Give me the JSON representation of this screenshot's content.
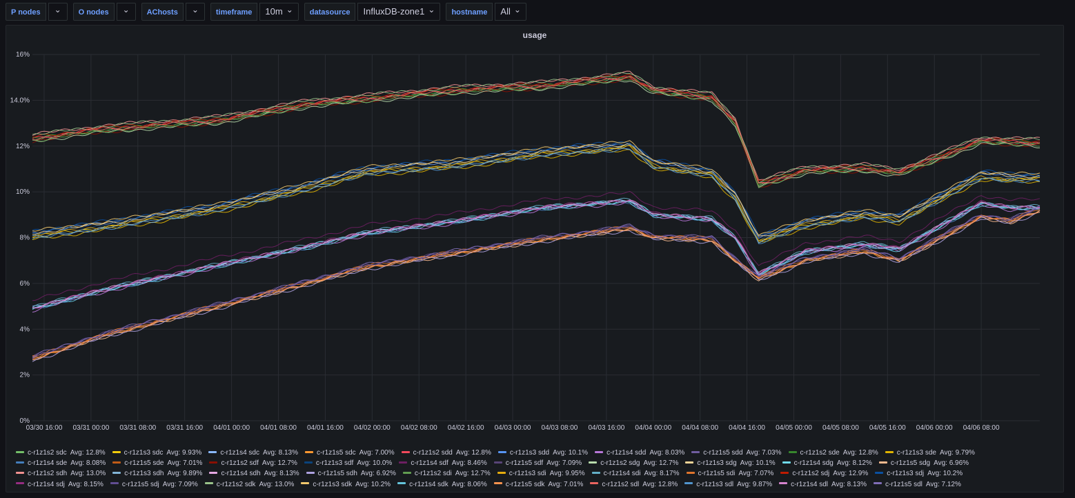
{
  "toolbar": {
    "vars": [
      {
        "label": "P nodes",
        "value": ""
      },
      {
        "label": "O nodes",
        "value": ""
      },
      {
        "label": "AChosts",
        "value": ""
      },
      {
        "label": "timeframe",
        "value": "10m"
      },
      {
        "label": "datasource",
        "value": "InfluxDB-zone1"
      },
      {
        "label": "hostname",
        "value": "All"
      }
    ],
    "chevron_icon": "chevron-down-icon"
  },
  "panel": {
    "title": "usage"
  },
  "chart_data": {
    "type": "line",
    "title": "usage",
    "y_ticks": [
      "0%",
      "2%",
      "4%",
      "6%",
      "8%",
      "10%",
      "12%",
      "14.0%",
      "16%"
    ],
    "ylim": [
      0,
      16
    ],
    "x_ticks": [
      "03/30 16:00",
      "03/31 00:00",
      "03/31 08:00",
      "03/31 16:00",
      "04/01 00:00",
      "04/01 08:00",
      "04/01 16:00",
      "04/02 00:00",
      "04/02 08:00",
      "04/02 16:00",
      "04/03 00:00",
      "04/03 08:00",
      "04/03 16:00",
      "04/04 00:00",
      "04/04 08:00",
      "04/04 16:00",
      "04/05 00:00",
      "04/05 08:00",
      "04/05 16:00",
      "04/06 00:00",
      "04/06 08:00"
    ],
    "x_range_hours": [
      -2,
      170
    ],
    "grid": true,
    "legend_position": "bottom",
    "group_shapes": {
      "g12": [
        [
          -2,
          12.3
        ],
        [
          10,
          12.7
        ],
        [
          30,
          13.1
        ],
        [
          45,
          13.8
        ],
        [
          70,
          14.4
        ],
        [
          85,
          14.6
        ],
        [
          100,
          15.0
        ],
        [
          104,
          14.4
        ],
        [
          114,
          14.1
        ],
        [
          118,
          13.0
        ],
        [
          122,
          10.3
        ],
        [
          130,
          10.9
        ],
        [
          140,
          11.0
        ],
        [
          146,
          10.8
        ],
        [
          160,
          12.2
        ],
        [
          170,
          12.1
        ]
      ],
      "g10": [
        [
          -2,
          8.1
        ],
        [
          10,
          8.5
        ],
        [
          30,
          9.3
        ],
        [
          45,
          10.2
        ],
        [
          55,
          10.9
        ],
        [
          70,
          11.2
        ],
        [
          85,
          11.7
        ],
        [
          100,
          12.0
        ],
        [
          104,
          11.2
        ],
        [
          114,
          10.8
        ],
        [
          118,
          9.8
        ],
        [
          122,
          7.9
        ],
        [
          130,
          8.6
        ],
        [
          140,
          9.0
        ],
        [
          146,
          8.8
        ],
        [
          160,
          10.7
        ],
        [
          165,
          10.6
        ],
        [
          170,
          10.6
        ]
      ],
      "g8": [
        [
          -2,
          4.9
        ],
        [
          10,
          5.7
        ],
        [
          30,
          6.8
        ],
        [
          45,
          7.6
        ],
        [
          55,
          8.2
        ],
        [
          70,
          8.7
        ],
        [
          85,
          9.3
        ],
        [
          100,
          9.6
        ],
        [
          104,
          9.0
        ],
        [
          114,
          8.8
        ],
        [
          118,
          8.0
        ],
        [
          122,
          6.4
        ],
        [
          130,
          7.4
        ],
        [
          140,
          7.7
        ],
        [
          146,
          7.5
        ],
        [
          160,
          9.5
        ],
        [
          165,
          9.3
        ],
        [
          170,
          9.3
        ]
      ],
      "g7": [
        [
          -2,
          2.7
        ],
        [
          10,
          3.7
        ],
        [
          30,
          5.0
        ],
        [
          45,
          6.0
        ],
        [
          55,
          6.7
        ],
        [
          70,
          7.3
        ],
        [
          85,
          7.9
        ],
        [
          100,
          8.4
        ],
        [
          104,
          8.0
        ],
        [
          114,
          7.9
        ],
        [
          118,
          7.0
        ],
        [
          122,
          6.2
        ],
        [
          130,
          7.0
        ],
        [
          140,
          7.4
        ],
        [
          146,
          7.0
        ],
        [
          160,
          8.9
        ],
        [
          165,
          8.7
        ],
        [
          170,
          9.2
        ]
      ]
    },
    "series": [
      {
        "name": "c-r1z1s2 sdc",
        "avg": "Avg: 12.8%",
        "color": "#73bf69",
        "group": "g12",
        "offset": 0.0
      },
      {
        "name": "c-r1z1s3 sdc",
        "avg": "Avg: 9.93%",
        "color": "#f2cc0c",
        "group": "g10",
        "offset": -0.05
      },
      {
        "name": "c-r1z1s4 sdc",
        "avg": "Avg: 8.13%",
        "color": "#8ab8ff",
        "group": "g8",
        "offset": 0.02
      },
      {
        "name": "c-r1z1s5 sdc",
        "avg": "Avg: 7.00%",
        "color": "#ff9830",
        "group": "g7",
        "offset": 0.0
      },
      {
        "name": "c-r1z1s2 sdd",
        "avg": "Avg: 12.8%",
        "color": "#f2495c",
        "group": "g12",
        "offset": 0.05
      },
      {
        "name": "c-r1z1s3 sdd",
        "avg": "Avg: 10.1%",
        "color": "#5794f2",
        "group": "g10",
        "offset": 0.12
      },
      {
        "name": "c-r1z1s4 sdd",
        "avg": "Avg: 8.03%",
        "color": "#b877d9",
        "group": "g8",
        "offset": -0.08
      },
      {
        "name": "c-r1z1s5 sdd",
        "avg": "Avg: 7.03%",
        "color": "#705da0",
        "group": "g7",
        "offset": 0.03
      },
      {
        "name": "c-r1z1s2 sde",
        "avg": "Avg: 12.8%",
        "color": "#37872d",
        "group": "g12",
        "offset": 0.02
      },
      {
        "name": "c-r1z1s3 sde",
        "avg": "Avg: 9.79%",
        "color": "#e0b400",
        "group": "g10",
        "offset": -0.18
      },
      {
        "name": "c-r1z1s4 sde",
        "avg": "Avg: 8.08%",
        "color": "#447ebc",
        "group": "g8",
        "offset": -0.03
      },
      {
        "name": "c-r1z1s5 sde",
        "avg": "Avg: 7.01%",
        "color": "#c15c17",
        "group": "g7",
        "offset": 0.01
      },
      {
        "name": "c-r1z1s2 sdf",
        "avg": "Avg: 12.7%",
        "color": "#890f02",
        "group": "g12",
        "offset": -0.08
      },
      {
        "name": "c-r1z1s3 sdf",
        "avg": "Avg: 10.0%",
        "color": "#0a437c",
        "group": "g10",
        "offset": 0.05
      },
      {
        "name": "c-r1z1s4 sdf",
        "avg": "Avg: 8.46%",
        "color": "#6d1f62",
        "group": "g8",
        "offset": 0.35
      },
      {
        "name": "c-r1z1s5 sdf",
        "avg": "Avg: 7.09%",
        "color": "#584477",
        "group": "g7",
        "offset": 0.09
      },
      {
        "name": "c-r1z1s2 sdg",
        "avg": "Avg: 12.7%",
        "color": "#b7dbab",
        "group": "g12",
        "offset": -0.1
      },
      {
        "name": "c-r1z1s3 sdg",
        "avg": "Avg: 10.1%",
        "color": "#f4d598",
        "group": "g10",
        "offset": 0.1
      },
      {
        "name": "c-r1z1s4 sdg",
        "avg": "Avg: 8.12%",
        "color": "#70dbed",
        "group": "g8",
        "offset": 0.01
      },
      {
        "name": "c-r1z1s5 sdg",
        "avg": "Avg: 6.96%",
        "color": "#f9ba8f",
        "group": "g7",
        "offset": -0.04
      },
      {
        "name": "c-r1z1s2 sdh",
        "avg": "Avg: 13.0%",
        "color": "#f29191",
        "group": "g12",
        "offset": 0.2
      },
      {
        "name": "c-r1z1s3 sdh",
        "avg": "Avg: 9.89%",
        "color": "#82b5d8",
        "group": "g10",
        "offset": -0.1
      },
      {
        "name": "c-r1z1s4 sdh",
        "avg": "Avg: 8.13%",
        "color": "#e5a8e2",
        "group": "g8",
        "offset": 0.02
      },
      {
        "name": "c-r1z1s5 sdh",
        "avg": "Avg: 6.92%",
        "color": "#aea2e0",
        "group": "g7",
        "offset": -0.08
      },
      {
        "name": "c-r1z1s2 sdi",
        "avg": "Avg: 12.7%",
        "color": "#629e51",
        "group": "g12",
        "offset": -0.06
      },
      {
        "name": "c-r1z1s3 sdi",
        "avg": "Avg: 9.95%",
        "color": "#e5ac0e",
        "group": "g10",
        "offset": -0.03
      },
      {
        "name": "c-r1z1s4 sdi",
        "avg": "Avg: 8.17%",
        "color": "#64b0c8",
        "group": "g8",
        "offset": 0.06
      },
      {
        "name": "c-r1z1s5 sdi",
        "avg": "Avg: 7.07%",
        "color": "#e0752d",
        "group": "g7",
        "offset": 0.07
      },
      {
        "name": "c-r1z1s2 sdj",
        "avg": "Avg: 12.9%",
        "color": "#bf1b00",
        "group": "g12",
        "offset": 0.1
      },
      {
        "name": "c-r1z1s3 sdj",
        "avg": "Avg: 10.2%",
        "color": "#0a50a1",
        "group": "g10",
        "offset": 0.2
      },
      {
        "name": "c-r1z1s4 sdj",
        "avg": "Avg: 8.15%",
        "color": "#962d82",
        "group": "g8",
        "offset": 0.04
      },
      {
        "name": "c-r1z1s5 sdj",
        "avg": "Avg: 7.09%",
        "color": "#614d93",
        "group": "g7",
        "offset": 0.09
      },
      {
        "name": "c-r1z1s2 sdk",
        "avg": "Avg: 13.0%",
        "color": "#9ac48a",
        "group": "g12",
        "offset": 0.18
      },
      {
        "name": "c-r1z1s3 sdk",
        "avg": "Avg: 10.2%",
        "color": "#f2c96d",
        "group": "g10",
        "offset": 0.18
      },
      {
        "name": "c-r1z1s4 sdk",
        "avg": "Avg: 8.06%",
        "color": "#65c5db",
        "group": "g8",
        "offset": -0.05
      },
      {
        "name": "c-r1z1s5 sdk",
        "avg": "Avg: 7.01%",
        "color": "#f9934e",
        "group": "g7",
        "offset": 0.01
      },
      {
        "name": "c-r1z1s2 sdl",
        "avg": "Avg: 12.8%",
        "color": "#ea6460",
        "group": "g12",
        "offset": 0.03
      },
      {
        "name": "c-r1z1s3 sdl",
        "avg": "Avg: 9.87%",
        "color": "#5195ce",
        "group": "g10",
        "offset": -0.12
      },
      {
        "name": "c-r1z1s4 sdl",
        "avg": "Avg: 8.13%",
        "color": "#d683ce",
        "group": "g8",
        "offset": 0.02
      },
      {
        "name": "c-r1z1s5 sdl",
        "avg": "Avg: 7.12%",
        "color": "#806eb7",
        "group": "g7",
        "offset": 0.12
      }
    ]
  }
}
